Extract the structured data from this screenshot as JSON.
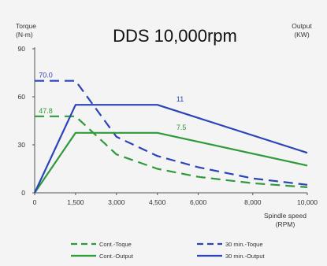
{
  "chart_data": {
    "type": "line",
    "title": "DDS  10,000rpm",
    "y_left_label": [
      "Torque",
      "(N-m)"
    ],
    "y_right_label": [
      "Output",
      "(KW)"
    ],
    "x_label": [
      "Spindle speed",
      "(RPM)"
    ],
    "x_ticks": [
      "0",
      "1,500",
      "3,000",
      "4,500",
      "6,000",
      "8,000",
      "10,000"
    ],
    "y_ticks": [
      "0",
      "30",
      "60",
      "90"
    ],
    "xlim": [
      0,
      10000
    ],
    "ylim": [
      0,
      90
    ],
    "grid": false,
    "legend_position": "bottom",
    "colors": {
      "green": "#2e9a3a",
      "blue": "#2b44b8"
    },
    "series": [
      {
        "name": "Cont.-Toque",
        "color": "green",
        "dashed": true,
        "points": [
          [
            0,
            47.8
          ],
          [
            1500,
            47.8
          ],
          [
            3000,
            24
          ],
          [
            4500,
            15
          ],
          [
            6000,
            10
          ],
          [
            8000,
            6
          ],
          [
            10000,
            3.5
          ]
        ]
      },
      {
        "name": "30 min.-Toque",
        "color": "blue",
        "dashed": true,
        "points": [
          [
            0,
            70
          ],
          [
            1500,
            70
          ],
          [
            3000,
            35
          ],
          [
            4500,
            23
          ],
          [
            6000,
            16
          ],
          [
            8000,
            9
          ],
          [
            10000,
            5
          ]
        ]
      },
      {
        "name": "Cont.-Output",
        "color": "green",
        "dashed": false,
        "points": [
          [
            0,
            0
          ],
          [
            1500,
            37.5
          ],
          [
            4500,
            37.5
          ],
          [
            10000,
            17
          ]
        ]
      },
      {
        "name": "30 min.-Output",
        "color": "blue",
        "dashed": false,
        "points": [
          [
            0,
            0
          ],
          [
            1500,
            55
          ],
          [
            4500,
            55
          ],
          [
            10000,
            25
          ]
        ]
      }
    ],
    "annotations": [
      {
        "text": "70.0",
        "x": 150,
        "y": 70,
        "color": "blue"
      },
      {
        "text": "47.8",
        "x": 150,
        "y": 47.8,
        "color": "green"
      },
      {
        "text": "11",
        "x": 5200,
        "y": 55,
        "color": "blue"
      },
      {
        "text": "7.5",
        "x": 5200,
        "y": 37.5,
        "color": "green"
      }
    ]
  }
}
